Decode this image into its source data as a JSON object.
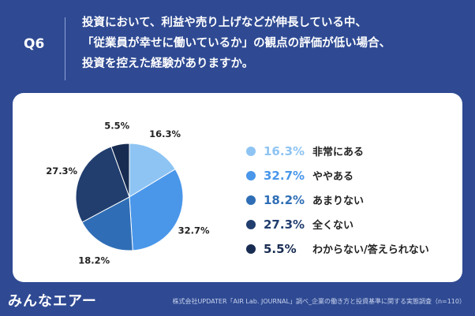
{
  "header": {
    "q_number": "Q6",
    "question_lines": [
      "投資において、利益や売り上げなどが伸長している中、",
      "「従業員が幸せに働いているか」の観点の評価が低い場合、",
      "投資を控えた経験がありますか。"
    ]
  },
  "chart_data": {
    "type": "pie",
    "slices": [
      {
        "label": "非常にある",
        "value": 16.3,
        "display": "16.3%",
        "color": "#8ec4f3"
      },
      {
        "label": "ややある",
        "value": 32.7,
        "display": "32.7%",
        "color": "#4a97ea"
      },
      {
        "label": "あまりない",
        "value": 18.2,
        "display": "18.2%",
        "color": "#2f6eb6"
      },
      {
        "label": "全くない",
        "value": 27.3,
        "display": "27.3%",
        "color": "#213e6f"
      },
      {
        "label": "わからない/答えられない",
        "value": 5.5,
        "display": "5.5%",
        "color": "#182c52"
      }
    ],
    "legend_position": "right"
  },
  "footer": {
    "logo": "みんなエアー",
    "source": "株式会社UPDATER「AIR Lab. JOURNAL」調べ_企業の働き方と投資基準に関する実態調査（n=110）"
  }
}
